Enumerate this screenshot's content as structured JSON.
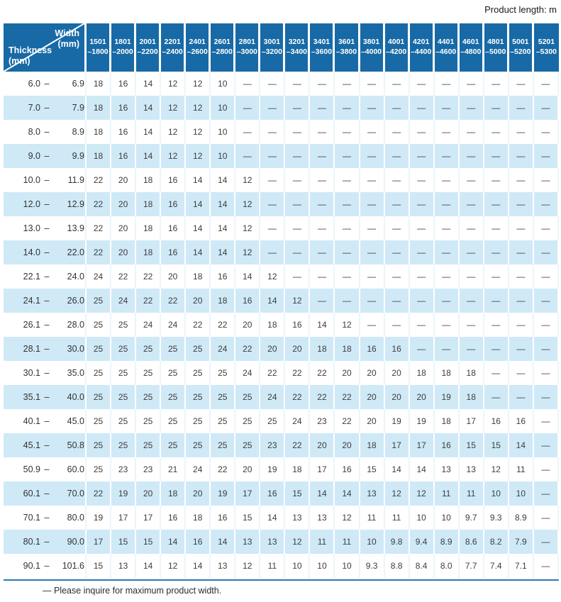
{
  "page": {
    "product_length_label": "Product length: m",
    "footnote": "— Please inquire for maximum product width."
  },
  "colors": {
    "header_blue": "#176aa6",
    "row_blue": "#cfe9f7",
    "rule_blue": "#2d7ab5"
  },
  "table": {
    "corner": {
      "width_line1": "Width",
      "width_line2": "(mm)",
      "thickness_line1": "Thickness",
      "thickness_line2": "(mm)"
    },
    "range_dash": "–",
    "width_columns": [
      [
        "1501",
        "–1800"
      ],
      [
        "1801",
        "–2000"
      ],
      [
        "2001",
        "–2200"
      ],
      [
        "2201",
        "–2400"
      ],
      [
        "2401",
        "–2600"
      ],
      [
        "2601",
        "–2800"
      ],
      [
        "2801",
        "–3000"
      ],
      [
        "3001",
        "–3200"
      ],
      [
        "3201",
        "–3400"
      ],
      [
        "3401",
        "–3600"
      ],
      [
        "3601",
        "–3800"
      ],
      [
        "3801",
        "–4000"
      ],
      [
        "4001",
        "–4200"
      ],
      [
        "4201",
        "–4400"
      ],
      [
        "4401",
        "–4600"
      ],
      [
        "4601",
        "–4800"
      ],
      [
        "4801",
        "–5000"
      ],
      [
        "5001",
        "–5200"
      ],
      [
        "5201",
        "–5300"
      ]
    ],
    "rows": [
      {
        "from": "6.0",
        "to": "6.9",
        "values": [
          "18",
          "16",
          "14",
          "12",
          "12",
          "10",
          "—",
          "—",
          "—",
          "—",
          "—",
          "—",
          "—",
          "—",
          "—",
          "—",
          "—",
          "—",
          "—"
        ]
      },
      {
        "from": "7.0",
        "to": "7.9",
        "values": [
          "18",
          "16",
          "14",
          "12",
          "12",
          "10",
          "—",
          "—",
          "—",
          "—",
          "—",
          "—",
          "—",
          "—",
          "—",
          "—",
          "—",
          "—",
          "—"
        ]
      },
      {
        "from": "8.0",
        "to": "8.9",
        "values": [
          "18",
          "16",
          "14",
          "12",
          "12",
          "10",
          "—",
          "—",
          "—",
          "—",
          "—",
          "—",
          "—",
          "—",
          "—",
          "—",
          "—",
          "—",
          "—"
        ]
      },
      {
        "from": "9.0",
        "to": "9.9",
        "values": [
          "18",
          "16",
          "14",
          "12",
          "12",
          "10",
          "—",
          "—",
          "—",
          "—",
          "—",
          "—",
          "—",
          "—",
          "—",
          "—",
          "—",
          "—",
          "—"
        ]
      },
      {
        "from": "10.0",
        "to": "11.9",
        "values": [
          "22",
          "20",
          "18",
          "16",
          "14",
          "14",
          "12",
          "—",
          "—",
          "—",
          "—",
          "—",
          "—",
          "—",
          "—",
          "—",
          "—",
          "—",
          "—"
        ]
      },
      {
        "from": "12.0",
        "to": "12.9",
        "values": [
          "22",
          "20",
          "18",
          "16",
          "14",
          "14",
          "12",
          "—",
          "—",
          "—",
          "—",
          "—",
          "—",
          "—",
          "—",
          "—",
          "—",
          "—",
          "—"
        ]
      },
      {
        "from": "13.0",
        "to": "13.9",
        "values": [
          "22",
          "20",
          "18",
          "16",
          "14",
          "14",
          "12",
          "—",
          "—",
          "—",
          "—",
          "—",
          "—",
          "—",
          "—",
          "—",
          "—",
          "—",
          "—"
        ]
      },
      {
        "from": "14.0",
        "to": "22.0",
        "values": [
          "22",
          "20",
          "18",
          "16",
          "14",
          "14",
          "12",
          "—",
          "—",
          "—",
          "—",
          "—",
          "—",
          "—",
          "—",
          "—",
          "—",
          "—",
          "—"
        ]
      },
      {
        "from": "22.1",
        "to": "24.0",
        "values": [
          "24",
          "22",
          "22",
          "20",
          "18",
          "16",
          "14",
          "12",
          "—",
          "—",
          "—",
          "—",
          "—",
          "—",
          "—",
          "—",
          "—",
          "—",
          "—"
        ]
      },
      {
        "from": "24.1",
        "to": "26.0",
        "values": [
          "25",
          "24",
          "22",
          "22",
          "20",
          "18",
          "16",
          "14",
          "12",
          "—",
          "—",
          "—",
          "—",
          "—",
          "—",
          "—",
          "—",
          "—",
          "—"
        ]
      },
      {
        "from": "26.1",
        "to": "28.0",
        "values": [
          "25",
          "25",
          "24",
          "24",
          "22",
          "22",
          "20",
          "18",
          "16",
          "14",
          "12",
          "—",
          "—",
          "—",
          "—",
          "—",
          "—",
          "—",
          "—"
        ]
      },
      {
        "from": "28.1",
        "to": "30.0",
        "values": [
          "25",
          "25",
          "25",
          "25",
          "25",
          "24",
          "22",
          "20",
          "20",
          "18",
          "18",
          "16",
          "16",
          "—",
          "—",
          "—",
          "—",
          "—",
          "—"
        ]
      },
      {
        "from": "30.1",
        "to": "35.0",
        "values": [
          "25",
          "25",
          "25",
          "25",
          "25",
          "25",
          "24",
          "22",
          "22",
          "22",
          "20",
          "20",
          "20",
          "18",
          "18",
          "18",
          "—",
          "—",
          "—"
        ]
      },
      {
        "from": "35.1",
        "to": "40.0",
        "values": [
          "25",
          "25",
          "25",
          "25",
          "25",
          "25",
          "25",
          "24",
          "22",
          "22",
          "22",
          "20",
          "20",
          "20",
          "19",
          "18",
          "—",
          "—",
          "—"
        ]
      },
      {
        "from": "40.1",
        "to": "45.0",
        "values": [
          "25",
          "25",
          "25",
          "25",
          "25",
          "25",
          "25",
          "25",
          "24",
          "23",
          "22",
          "20",
          "19",
          "19",
          "18",
          "17",
          "16",
          "16",
          "—"
        ]
      },
      {
        "from": "45.1",
        "to": "50.8",
        "values": [
          "25",
          "25",
          "25",
          "25",
          "25",
          "25",
          "25",
          "23",
          "22",
          "20",
          "20",
          "18",
          "17",
          "17",
          "16",
          "15",
          "15",
          "14",
          "—"
        ]
      },
      {
        "from": "50.9",
        "to": "60.0",
        "values": [
          "25",
          "23",
          "23",
          "21",
          "24",
          "22",
          "20",
          "19",
          "18",
          "17",
          "16",
          "15",
          "14",
          "14",
          "13",
          "13",
          "12",
          "11",
          "—"
        ]
      },
      {
        "from": "60.1",
        "to": "70.0",
        "values": [
          "22",
          "19",
          "20",
          "18",
          "20",
          "19",
          "17",
          "16",
          "15",
          "14",
          "14",
          "13",
          "12",
          "12",
          "11",
          "11",
          "10",
          "10",
          "—"
        ]
      },
      {
        "from": "70.1",
        "to": "80.0",
        "values": [
          "19",
          "17",
          "17",
          "16",
          "18",
          "16",
          "15",
          "14",
          "13",
          "13",
          "12",
          "11",
          "11",
          "10",
          "10",
          "9.7",
          "9.3",
          "8.9",
          "—"
        ]
      },
      {
        "from": "80.1",
        "to": "90.0",
        "values": [
          "17",
          "15",
          "15",
          "14",
          "16",
          "14",
          "13",
          "13",
          "12",
          "11",
          "11",
          "10",
          "9.8",
          "9.4",
          "8.9",
          "8.6",
          "8.2",
          "7.9",
          "—"
        ]
      },
      {
        "from": "90.1",
        "to": "101.6",
        "values": [
          "15",
          "13",
          "14",
          "12",
          "14",
          "13",
          "12",
          "11",
          "10",
          "10",
          "10",
          "9.3",
          "8.8",
          "8.4",
          "8.0",
          "7.7",
          "7.4",
          "7.1",
          "—"
        ]
      }
    ]
  }
}
